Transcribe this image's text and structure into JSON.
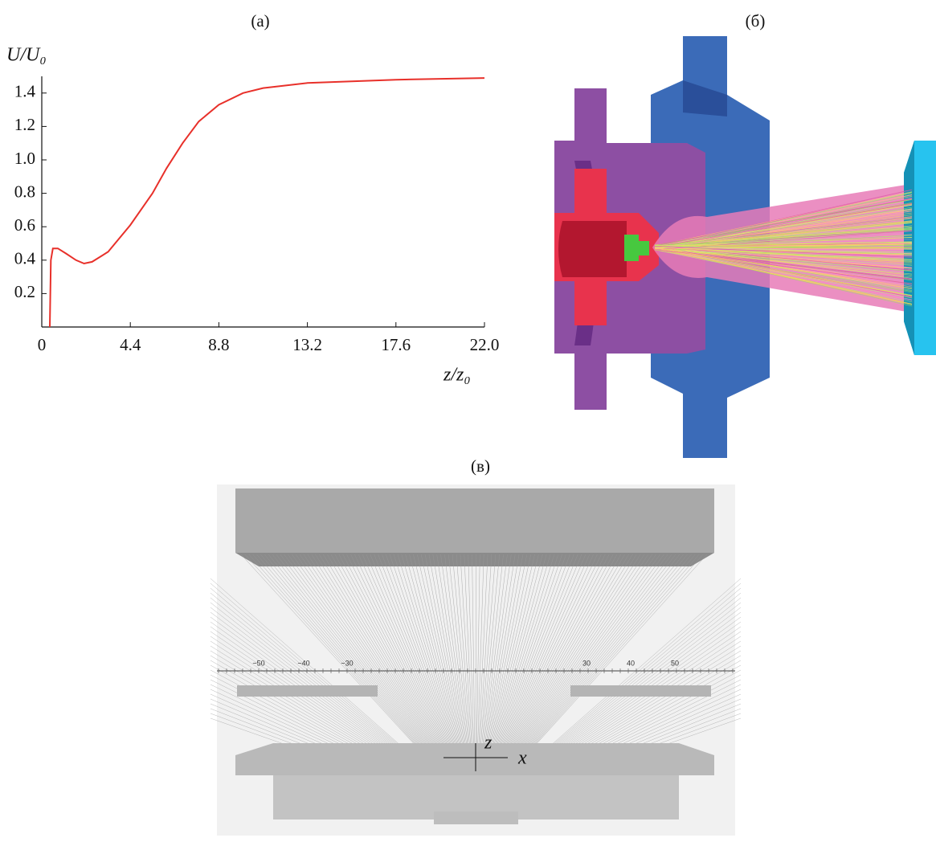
{
  "panels": {
    "a": "(а)",
    "b": "(б)",
    "c": "(в)"
  },
  "chart_data": {
    "type": "line",
    "y_label": "U/U₀",
    "x_label": "z/z₀",
    "x": [
      0.4,
      0.45,
      0.55,
      0.8,
      1.2,
      1.7,
      2.1,
      2.5,
      3.3,
      4.4,
      5.5,
      6.2,
      7.0,
      7.8,
      8.8,
      10.0,
      11.0,
      13.2,
      17.6,
      22.0
    ],
    "series": [
      {
        "color": "#e8302a",
        "values": [
          0.0,
          0.4,
          0.47,
          0.47,
          0.44,
          0.4,
          0.38,
          0.39,
          0.45,
          0.61,
          0.8,
          0.95,
          1.1,
          1.23,
          1.33,
          1.4,
          1.43,
          1.46,
          1.48,
          1.49
        ]
      }
    ],
    "xlim": [
      0,
      22
    ],
    "ylim": [
      0,
      1.5
    ],
    "xticks": [
      0,
      4.4,
      8.8,
      13.2,
      17.6,
      {
        "value": 22,
        "label": "22.0"
      }
    ],
    "yticks": [
      0.2,
      0.4,
      0.6,
      0.8,
      {
        "value": 1,
        "label": "1.0"
      },
      1.2,
      1.4
    ]
  },
  "figure_c": {
    "ruler_labels": [
      "−50",
      "−40",
      "−30",
      "30",
      "40",
      "50"
    ],
    "axis_z": "z",
    "axis_x": "x"
  }
}
